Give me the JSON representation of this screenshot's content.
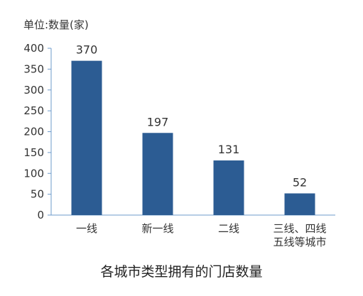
{
  "chart_data": {
    "type": "bar",
    "unit_label": "单位:数量(家)",
    "title": "各城市类型拥有的门店数量",
    "categories": [
      [
        "一线"
      ],
      [
        "新一线"
      ],
      [
        "二线"
      ],
      [
        "三线、四线",
        "五线等城市"
      ]
    ],
    "values": [
      370,
      197,
      131,
      52
    ],
    "data_labels": [
      "370",
      "197",
      "131",
      "52"
    ],
    "ylim": [
      0,
      400
    ],
    "yticks": [
      0,
      50,
      100,
      150,
      200,
      250,
      300,
      350,
      400
    ],
    "grid": false,
    "legend": "none",
    "colors": {
      "bar": "#2C5C93",
      "axis": "#6E9BCB",
      "tick_text": "#333333",
      "value_text": "#333333"
    }
  }
}
